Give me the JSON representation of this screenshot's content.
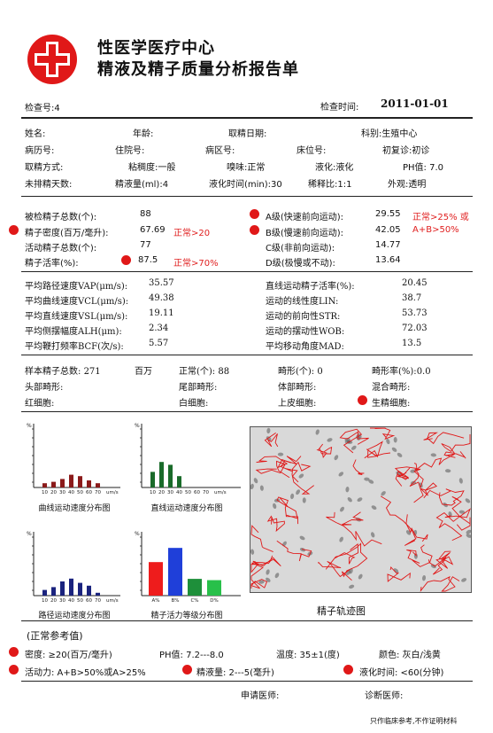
{
  "header": {
    "title_line1": "性医学医疗中心",
    "title_line2": "精液及精子质量分析报告单"
  },
  "meta": {
    "exam_no_label": "检查号:",
    "exam_no": "4",
    "exam_time_label": "检查时间:",
    "exam_time": "2011-01-01"
  },
  "patient": {
    "name_label": "姓名:",
    "age_label": "年龄:",
    "collect_date_label": "取精日期:",
    "dept_label": "科别:",
    "dept": "生殖中心",
    "record_label": "病历号:",
    "inpatient_label": "住院号:",
    "ward_label": "病区号:",
    "bed_label": "床位号:",
    "visit_label": "初复诊:",
    "visit": "初诊",
    "method_label": "取精方式:",
    "viscosity_label": "粘稠度:",
    "viscosity": "一般",
    "smell_label": "嗅味:",
    "smell": "正常",
    "liquefy_label": "液化:",
    "liquefy": "液化",
    "ph_label": "PH值:",
    "ph": "7.0",
    "abstinence_label": "未排精天数:",
    "volume_label": "精液量(ml):",
    "volume": "4",
    "liquefy_time_label": "液化时间(min):",
    "liquefy_time": "30",
    "dilution_label": "稀释比:",
    "dilution": "1:1",
    "appearance_label": "外观:",
    "appearance": "透明"
  },
  "counts": {
    "total_label": "被检精子总数(个):",
    "total": "88",
    "density_label": "精子密度(百万/毫升):",
    "density": "67.69",
    "density_ref": "正常>20",
    "active_label": "活动精子总数(个):",
    "active": "77",
    "activity_label": "精子活率(%):",
    "activity": "87.5",
    "activity_ref": "正常>70%",
    "a_label": "A级(快速前向运动):",
    "a_value": "29.55",
    "a_ref": "正常>25% 或",
    "b_label": "B级(慢速前向运动):",
    "b_value": "42.05",
    "b_ref": "A+B>50%",
    "c_label": "C级(非前向运动):",
    "c_value": "14.77",
    "d_label": "D级(极慢或不动):",
    "d_value": "13.64"
  },
  "kinetics": [
    {
      "label": "平均路径速度VAP(μm/s):",
      "value": "35.57",
      "label2": "直线运动精子活率(%):",
      "value2": "20.45"
    },
    {
      "label": "平均曲线速度VCL(μm/s):",
      "value": "49.38",
      "label2": "运动的线性度LIN:",
      "value2": "38.7"
    },
    {
      "label": "平均直线速度VSL(μm/s):",
      "value": "19.11",
      "label2": "运动的前向性STR:",
      "value2": "53.73"
    },
    {
      "label": "平均侧摆幅度ALH(μm):",
      "value": "2.34",
      "label2": "运动的摆动性WOB:",
      "value2": "72.03"
    },
    {
      "label": "平均鞭打频率BCF(次/s):",
      "value": "5.57",
      "label2": "平均移动角度MAD:",
      "value2": "13.5"
    }
  ],
  "morphology": {
    "sample_label": "样本精子总数:",
    "sample": "271",
    "sample_unit": "百万",
    "normal_label": "正常(个):",
    "normal": "88",
    "abnormal_label": "畸形(个):",
    "abnormal": "0",
    "abnormal_rate_label": "畸形率(%):",
    "abnormal_rate": "0.0",
    "head_label": "头部畸形:",
    "tail_label": "尾部畸形:",
    "body_label": "体部畸形:",
    "mixed_label": "混合畸形:",
    "rbc_label": "红细胞:",
    "wbc_label": "白细胞:",
    "epi_label": "上皮细胞:",
    "germ_label": "生精细胞:"
  },
  "charts": {
    "y_unit": "%",
    "x_ticks": [
      "10",
      "20",
      "30",
      "40",
      "50",
      "60",
      "70"
    ],
    "x_unit": "um/s",
    "grade_ticks": [
      "A%",
      "B%",
      "C%",
      "D%"
    ],
    "cap_curve": "曲线运动速度分布图",
    "cap_linear": "直线运动速度分布图",
    "cap_path": "路径运动速度分布图",
    "cap_grade": "精子活力等级分布图",
    "cap_track": "精子轨迹图"
  },
  "chart_data": [
    {
      "type": "bar",
      "title": "曲线运动速度分布图",
      "categories": [
        "10",
        "20",
        "30",
        "40",
        "50",
        "60",
        "70"
      ],
      "values": [
        3,
        4,
        6,
        9,
        8,
        5,
        3
      ],
      "color": "#8b1a1a"
    },
    {
      "type": "bar",
      "title": "直线运动速度分布图",
      "categories": [
        "10",
        "20",
        "30",
        "40",
        "50",
        "60",
        "70"
      ],
      "values": [
        11,
        18,
        16,
        8,
        0,
        0,
        0
      ],
      "color": "#1a6b2a"
    },
    {
      "type": "bar",
      "title": "路径运动速度分布图",
      "categories": [
        "10",
        "20",
        "30",
        "40",
        "50",
        "60",
        "70"
      ],
      "values": [
        4,
        6,
        10,
        12,
        9,
        7,
        2
      ],
      "color": "#1a237e"
    },
    {
      "type": "bar",
      "title": "精子活力等级分布图",
      "categories": [
        "A%",
        "B%",
        "C%",
        "D%"
      ],
      "values": [
        29.55,
        42.05,
        14.77,
        13.64
      ],
      "colors": [
        "#ee1c1c",
        "#1f3fd9",
        "#1e8f3a",
        "#28c04a"
      ]
    }
  ],
  "reference": {
    "title": "(正常参考值)",
    "density": "密度: ≥20(百万/毫升)",
    "ph": "PH值: 7.2---8.0",
    "temp": "温度: 35±1(度)",
    "color": "颜色: 灰白/浅黄",
    "activity": "活动力: A+B>50%或A>25%",
    "volume": "精液量: 2---5(毫升)",
    "liquefy": "液化时间: <60(分钟)"
  },
  "footer": {
    "applicant_label": "申请医师:",
    "diagnose_label": "诊断医师:",
    "note": "只作临床参考,不作证明材料"
  }
}
